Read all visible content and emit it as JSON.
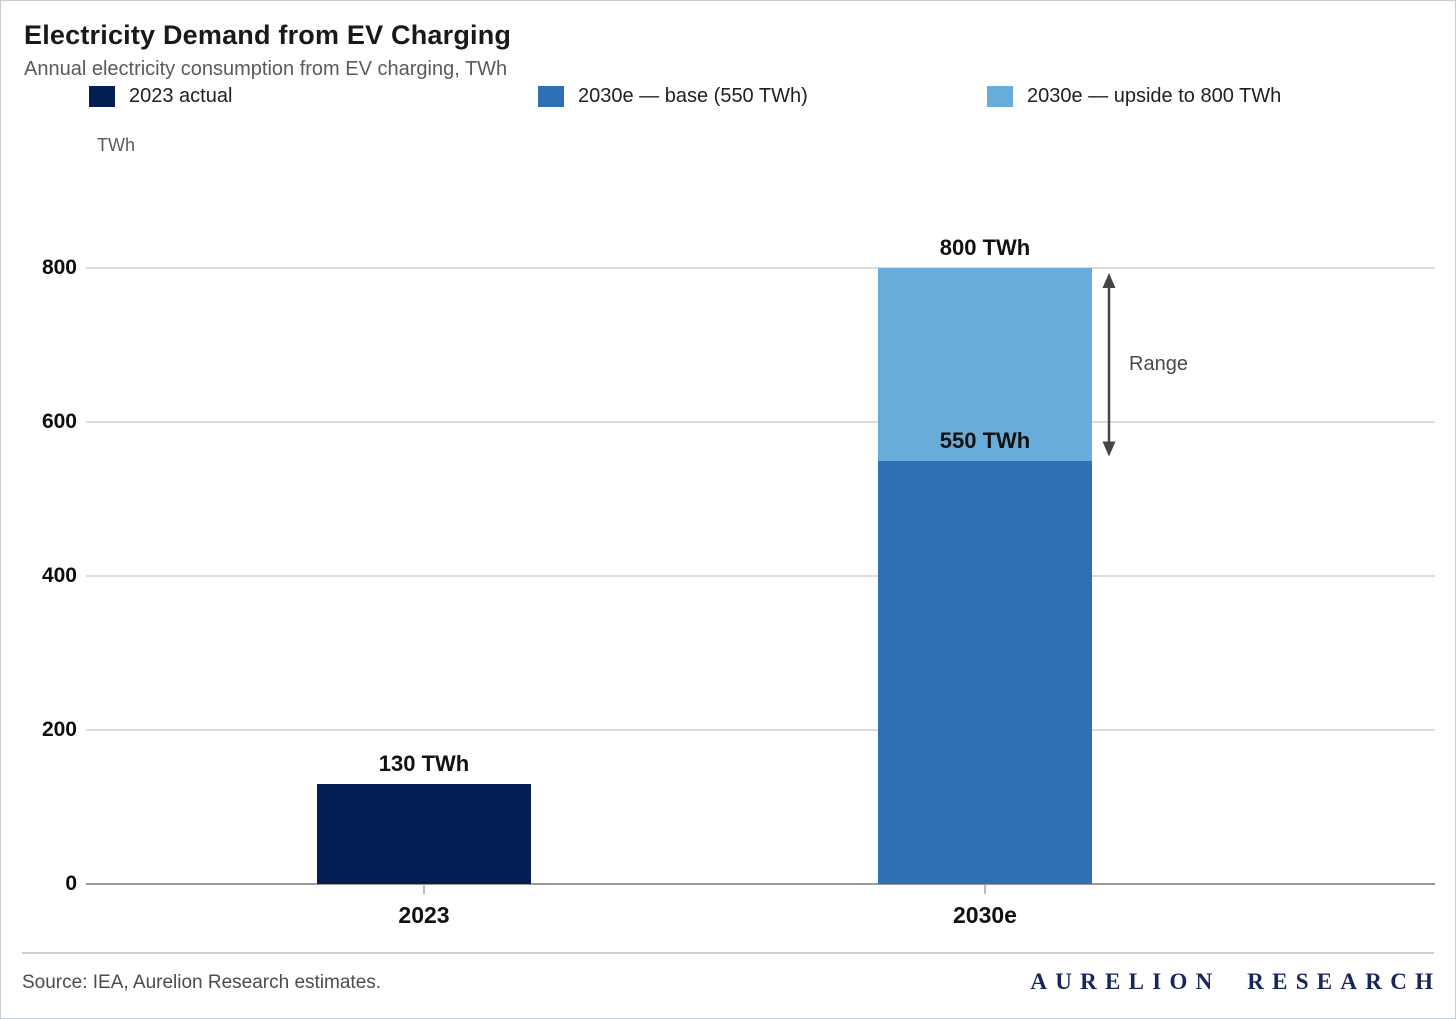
{
  "header": {
    "title": "Electricity Demand from EV Charging",
    "subtitle": "Annual electricity consumption from EV charging, TWh"
  },
  "legend": [
    {
      "label": "2023 actual",
      "color": "#041d52"
    },
    {
      "label": "2030e — base (550 TWh)",
      "color": "#2f6fb4"
    },
    {
      "label": "2030e — upside to 800 TWh",
      "color": "#68acd9"
    }
  ],
  "chart_data": {
    "type": "bar",
    "title": "Electricity Demand from EV Charging",
    "subtitle": "Annual electricity consumption from EV charging, TWh",
    "unit_label": "TWh",
    "categories": [
      "2023",
      "2030e"
    ],
    "series": [
      {
        "name": "2023 actual",
        "color": "#041d52",
        "values": [
          130,
          0
        ]
      },
      {
        "name": "2030e — base (550 TWh)",
        "color": "#2f6fb4",
        "values": [
          0,
          550
        ]
      },
      {
        "name": "2030e — upside to 800 TWh",
        "color": "#68acd9",
        "values": [
          0,
          250
        ]
      }
    ],
    "stacked": true,
    "y_ticks": [
      0,
      200,
      400,
      600,
      800
    ],
    "ylim": [
      0,
      800
    ],
    "grid": true,
    "legend_position": "top",
    "value_labels": [
      {
        "text": "130 TWh",
        "category": "2023",
        "value": 130
      },
      {
        "text": "550 TWh",
        "category": "2030e",
        "value": 550
      },
      {
        "text": "800 TWh",
        "category": "2030e",
        "value": 800
      }
    ],
    "range_annotation": {
      "label": "Range",
      "category": "2030e",
      "from": 550,
      "to": 800
    }
  },
  "footer": {
    "source": "Source: IEA, Aurelion Research estimates.",
    "brand": "AURELION  RESEARCH"
  }
}
